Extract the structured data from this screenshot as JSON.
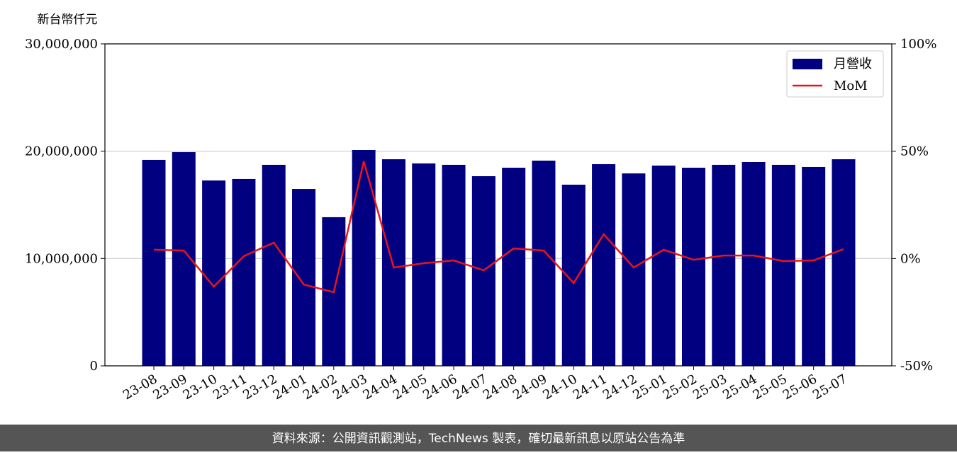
{
  "chart_data": {
    "type": "bar_line",
    "y_label": "新台幣仟元",
    "footer": "資料來源：公開資訊觀測站，TechNews 製表，確切最新訊息以原站公告為準",
    "categories": [
      "23-08",
      "23-09",
      "23-10",
      "23-11",
      "23-12",
      "24-01",
      "24-02",
      "24-03",
      "24-04",
      "24-05",
      "24-06",
      "24-07",
      "24-08",
      "24-09",
      "24-10",
      "24-11",
      "24-12",
      "25-01",
      "25-02",
      "25-03",
      "25-04",
      "25-05",
      "25-06",
      "25-07"
    ],
    "series": [
      {
        "name": "月營收",
        "type": "bar",
        "color": "#000080",
        "values": [
          19190000,
          19910000,
          17270000,
          17410000,
          18730000,
          16480000,
          13850000,
          20110000,
          19250000,
          18860000,
          18730000,
          17670000,
          18460000,
          19120000,
          16880000,
          18790000,
          17930000,
          18660000,
          18460000,
          18730000,
          18990000,
          18730000,
          18530000,
          19250000
        ]
      },
      {
        "name": "MoM",
        "type": "line",
        "axis": "y2",
        "color": "#e8141c",
        "values": [
          4.1,
          3.7,
          -13.1,
          1.1,
          7.4,
          -12.1,
          -15.7,
          45.3,
          -4.2,
          -2.2,
          -0.9,
          -5.5,
          4.7,
          3.7,
          -11.4,
          11.3,
          -4.2,
          4.1,
          -0.6,
          1.4,
          1.4,
          -1.2,
          -0.9,
          4.4
        ]
      }
    ],
    "ylim": [
      0,
      30000000
    ],
    "yticks": [
      0,
      {
        "value": 10000000,
        "label": "10,000,000"
      },
      {
        "value": 20000000,
        "label": "20,000,000"
      },
      {
        "value": 30000000,
        "label": "30,000,000"
      }
    ],
    "y2lim": [
      -50,
      100
    ],
    "y2ticks": [
      {
        "value": -50,
        "label": "-50%"
      },
      {
        "value": 0,
        "label": "0%"
      },
      {
        "value": 50,
        "label": "50%"
      },
      {
        "value": 100,
        "label": "100%"
      }
    ],
    "grid": true,
    "legend": "upper-right"
  }
}
